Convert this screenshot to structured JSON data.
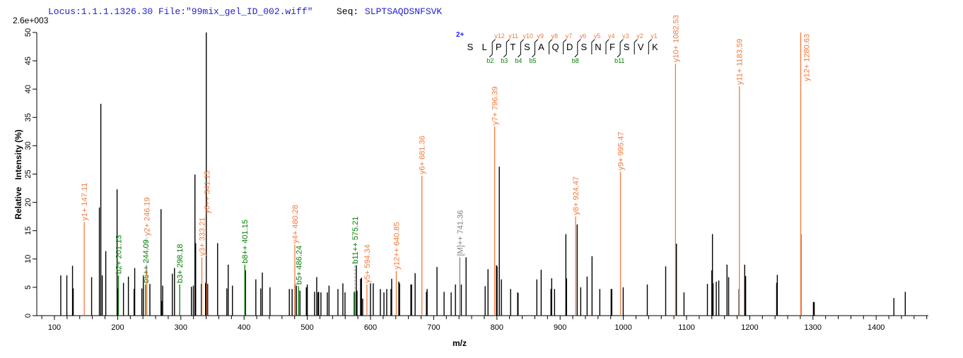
{
  "header": {
    "locus": "Locus:1.1.1.1326.30",
    "file": "File:\"99mix_gel_ID_002.wiff\"",
    "seq_label": "Seq:",
    "seq_value": "SLPTSAQDSNFSVK",
    "scale_label": "2.6e+003"
  },
  "colors": {
    "y_ion": "#F4793B",
    "b_ion": "#008000",
    "precursor": "#808080",
    "peak": "#000000",
    "title": "#1F1FCF"
  },
  "fragment_map": {
    "charge": "2+",
    "residues": [
      "S",
      "L",
      "P",
      "T",
      "S",
      "A",
      "Q",
      "D",
      "S",
      "N",
      "F",
      "S",
      "V",
      "K"
    ],
    "y_labels": [
      "y12",
      "y11",
      "y10",
      "y9",
      "y8",
      "y7",
      "y6",
      "y5",
      "y4",
      "y3",
      "y2",
      "y1"
    ],
    "b_labels": [
      {
        "pos": 2,
        "label": "b2"
      },
      {
        "pos": 3,
        "label": "b3"
      },
      {
        "pos": 4,
        "label": "b4"
      },
      {
        "pos": 5,
        "label": "b5"
      },
      {
        "pos": 8,
        "label": "b8"
      },
      {
        "pos": 11,
        "label": "b11"
      }
    ]
  },
  "chart_data": {
    "type": "bar",
    "subtype": "mass-spectrum",
    "xlabel": "m/z",
    "ylabel": "Relative   Intensity (%)",
    "xlim": [
      74,
      1487
    ],
    "ylim": [
      0,
      50
    ],
    "xticks": [
      100,
      200,
      300,
      400,
      500,
      600,
      700,
      800,
      900,
      1000,
      1100,
      1200,
      1300,
      1400
    ],
    "yticks": [
      0,
      5,
      10,
      15,
      20,
      25,
      30,
      35,
      40,
      45,
      50
    ],
    "grid": false,
    "peaks": [
      [
        110,
        7.1
      ],
      [
        119.6,
        7.1
      ],
      [
        128.6,
        8.8
      ],
      [
        129.7,
        4.8
      ],
      [
        158.8,
        6.8
      ],
      [
        171.1,
        19.1
      ],
      [
        173.4,
        37.4
      ],
      [
        175.6,
        7.1
      ],
      [
        181.2,
        11.4
      ],
      [
        199.1,
        22.3
      ],
      [
        200.3,
        4.8
      ],
      [
        209.2,
        5.8
      ],
      [
        217,
        6.9
      ],
      [
        226,
        4.7
      ],
      [
        227,
        8.4
      ],
      [
        238.3,
        4.8
      ],
      [
        240.6,
        7.1
      ],
      [
        251,
        5.6
      ],
      [
        268.6,
        18.8
      ],
      [
        269.6,
        2.6
      ],
      [
        271.2,
        5.3
      ],
      [
        286.5,
        7.4
      ],
      [
        289.9,
        8.4
      ],
      [
        316.7,
        5.1
      ],
      [
        319.8,
        5.3
      ],
      [
        322.3,
        24.9
      ],
      [
        323.4,
        12.8
      ],
      [
        332.4,
        5.6
      ],
      [
        339.1,
        5.8
      ],
      [
        340.2,
        50
      ],
      [
        342.4,
        5.6
      ],
      [
        358.1,
        12.8
      ],
      [
        372.7,
        4.8
      ],
      [
        374.9,
        9.0
      ],
      [
        381.6,
        5.3
      ],
      [
        402.2,
        8.0
      ],
      [
        418.6,
        6.4
      ],
      [
        426.4,
        4.8
      ],
      [
        428.9,
        7.6
      ],
      [
        441,
        5.0
      ],
      [
        471.6,
        4.7
      ],
      [
        476,
        4.7
      ],
      [
        480.5,
        5.5
      ],
      [
        482.8,
        5.3
      ],
      [
        488.4,
        4.4
      ],
      [
        498.5,
        5.0
      ],
      [
        500,
        5.5
      ],
      [
        511.5,
        4.2
      ],
      [
        514.9,
        6.8
      ],
      [
        517,
        4.1
      ],
      [
        518,
        4.2
      ],
      [
        521.6,
        4.1
      ],
      [
        531.7,
        4.1
      ],
      [
        534.4,
        5.3
      ],
      [
        548.5,
        4.7
      ],
      [
        556.3,
        5.7
      ],
      [
        559.7,
        4.1
      ],
      [
        574.3,
        4.2
      ],
      [
        577.6,
        8.9
      ],
      [
        578.7,
        4.4
      ],
      [
        584.3,
        6.5
      ],
      [
        585.8,
        6.7
      ],
      [
        587.6,
        3.0
      ],
      [
        600,
        5.7
      ],
      [
        604.4,
        5.7
      ],
      [
        615.6,
        4.7
      ],
      [
        621.3,
        4.1
      ],
      [
        625.7,
        4.7
      ],
      [
        632.4,
        4.7
      ],
      [
        633.5,
        6.5
      ],
      [
        644.8,
        6.0
      ],
      [
        646,
        5.7
      ],
      [
        663.9,
        5.5
      ],
      [
        665,
        5.5
      ],
      [
        670.6,
        7.5
      ],
      [
        688.5,
        4.2
      ],
      [
        689.6,
        4.7
      ],
      [
        705.2,
        8.6
      ],
      [
        716.4,
        4.2
      ],
      [
        727.6,
        4.1
      ],
      [
        734.4,
        5.5
      ],
      [
        743.7,
        5.5
      ],
      [
        751.2,
        10.3
      ],
      [
        781.4,
        5.2
      ],
      [
        785.9,
        8.2
      ],
      [
        799.3,
        8.9
      ],
      [
        800.3,
        8.7
      ],
      [
        803.8,
        26.3
      ],
      [
        807.1,
        6.4
      ],
      [
        821.7,
        4.7
      ],
      [
        832.8,
        4.1
      ],
      [
        833.5,
        4.0
      ],
      [
        863.2,
        6.4
      ],
      [
        870,
        8.1
      ],
      [
        885.5,
        4.7
      ],
      [
        886.7,
        6.6
      ],
      [
        891.2,
        4.7
      ],
      [
        909.1,
        14.4
      ],
      [
        910.2,
        6.6
      ],
      [
        927,
        16.1
      ],
      [
        932.6,
        5.0
      ],
      [
        942.7,
        6.9
      ],
      [
        950.5,
        10.5
      ],
      [
        962.8,
        4.7
      ],
      [
        980.7,
        4.7
      ],
      [
        981.8,
        4.7
      ],
      [
        999.8,
        5.0
      ],
      [
        1037.9,
        5.5
      ],
      [
        1067,
        8.7
      ],
      [
        1084,
        12.7
      ],
      [
        1096,
        4.1
      ],
      [
        1133,
        5.6
      ],
      [
        1140,
        8.0
      ],
      [
        1141,
        14.4
      ],
      [
        1142,
        5.7
      ],
      [
        1147,
        6.0
      ],
      [
        1151,
        6.2
      ],
      [
        1164,
        9.0
      ],
      [
        1166.6,
        6.8
      ],
      [
        1183,
        4.7
      ],
      [
        1192,
        9.0
      ],
      [
        1193.5,
        7.0
      ],
      [
        1242.6,
        5.8
      ],
      [
        1243.6,
        7.2
      ],
      [
        1281,
        14.4
      ],
      [
        1300.7,
        2.4
      ],
      [
        1302,
        2.4
      ],
      [
        1428,
        3.1
      ],
      [
        1446,
        4.2
      ]
    ],
    "annotations": [
      {
        "label": "y1+ 147.11",
        "mz": 147.11,
        "intensity": 16.5,
        "type": "y"
      },
      {
        "label": "b2+ 201.13",
        "mz": 201.13,
        "intensity": 7.1,
        "type": "b"
      },
      {
        "label": "b5++ 244.09",
        "mz": 244.09,
        "intensity": 5.5,
        "type": "b"
      },
      {
        "label": "y2+ 246.19",
        "mz": 246.19,
        "intensity": 8.0,
        "type": "y"
      },
      {
        "label": "b3+ 298.18",
        "mz": 298.18,
        "intensity": 5.5,
        "type": "b"
      },
      {
        "label": "y3+ 333.21",
        "mz": 333.21,
        "intensity": 10.3,
        "type": "y"
      },
      {
        "label": "y6++ 341.15",
        "mz": 341.15,
        "intensity": 5.8,
        "type": "y"
      },
      {
        "label": "b8++ 401.15",
        "mz": 401.15,
        "intensity": 9.0,
        "type": "b"
      },
      {
        "label": "y4+ 480.28",
        "mz": 480.28,
        "intensity": 12.5,
        "type": "y"
      },
      {
        "label": "b5+ 486.24",
        "mz": 486.24,
        "intensity": 5.2,
        "type": "b"
      },
      {
        "label": "b11++ 575.21",
        "mz": 575.21,
        "intensity": 4.1,
        "type": "b"
      },
      {
        "label": "y5+ 594.34",
        "mz": 594.34,
        "intensity": 5.5,
        "type": "y"
      },
      {
        "label": "y12++ 640.85",
        "mz": 640.85,
        "intensity": 7.9,
        "type": "y"
      },
      {
        "label": "y6+ 681.36",
        "mz": 681.36,
        "intensity": 24.7,
        "type": "y"
      },
      {
        "label": "[M]++ 741.36",
        "mz": 741.36,
        "intensity": 10.3,
        "type": "precursor"
      },
      {
        "label": "y7+ 796.39",
        "mz": 796.39,
        "intensity": 33.4,
        "type": "y"
      },
      {
        "label": "y8+ 924.47",
        "mz": 924.47,
        "intensity": 17.5,
        "type": "y"
      },
      {
        "label": "y9+ 995.47",
        "mz": 995.47,
        "intensity": 25.4,
        "type": "y"
      },
      {
        "label": "y10+ 1082.53",
        "mz": 1082.53,
        "intensity": 44.5,
        "type": "y"
      },
      {
        "label": "y11+ 1183.59",
        "mz": 1183.59,
        "intensity": 40.5,
        "type": "y"
      },
      {
        "label": "y12+ 1280.63",
        "mz": 1280.63,
        "intensity": 50,
        "type": "y"
      }
    ]
  }
}
